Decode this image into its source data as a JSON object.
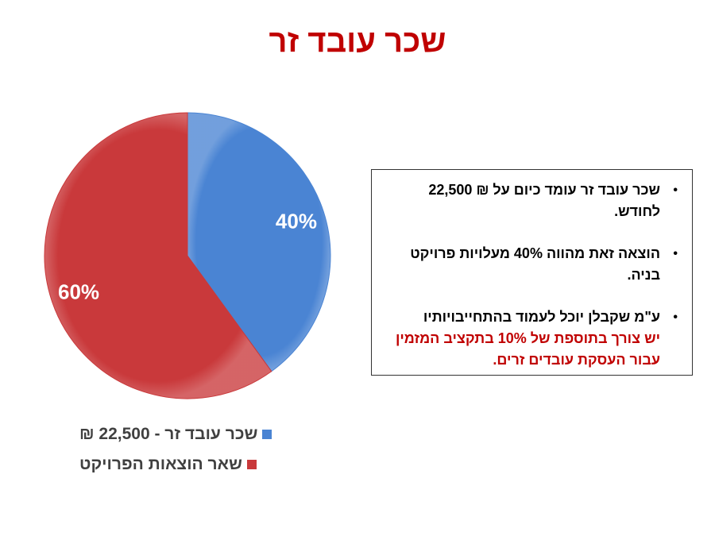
{
  "title": "שכר עובד זר",
  "chart_data": {
    "type": "pie",
    "title": "",
    "slices": [
      {
        "label": "שכר עובד זר - 22,500 ₪",
        "value": 40,
        "display": "40%",
        "color": "#4a84d3"
      },
      {
        "label": "שאר הוצאות הפרויקט",
        "value": 60,
        "display": "60%",
        "color": "#c9393b"
      }
    ],
    "start_angle_deg": 0,
    "direction": "clockwise",
    "legend_position": "bottom-left"
  },
  "info_box": {
    "bullet_glyph": "•",
    "bullets": [
      {
        "text": "שכר עובד זר עומד כיום על ₪ 22,500 לחודש.",
        "red_text": ""
      },
      {
        "text": "הוצאה זאת מהווה 40% מעלויות פרויקט בניה.",
        "red_text": ""
      },
      {
        "text": "ע\"מ שקבלן יוכל לעמוד בהתחייבויותיו",
        "red_text": "יש צורך בתוספת של 10% בתקציב המזמין עבור העסקת עובדים זרים."
      }
    ]
  }
}
